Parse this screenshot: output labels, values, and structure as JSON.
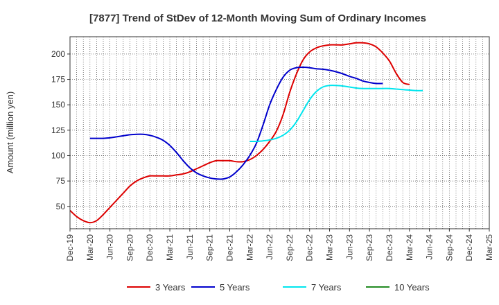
{
  "chart_data": {
    "type": "line",
    "title": "[7877]  Trend of StDev of 12-Month Moving Sum of Ordinary Incomes",
    "ylabel": "Amount (million yen)",
    "xlabel": "",
    "x_ticks": [
      "Dec-19",
      "Mar-20",
      "Jun-20",
      "Sep-20",
      "Dec-20",
      "Mar-21",
      "Jun-21",
      "Sep-21",
      "Dec-21",
      "Mar-22",
      "Jun-22",
      "Sep-22",
      "Dec-22",
      "Mar-23",
      "Jun-23",
      "Sep-23",
      "Dec-23",
      "Mar-24",
      "Jun-24",
      "Sep-24",
      "Dec-24",
      "Mar-25"
    ],
    "y_ticks": [
      50,
      75,
      100,
      125,
      150,
      175,
      200
    ],
    "ylim": [
      28,
      217
    ],
    "grid": true,
    "legend_position": "bottom",
    "series": [
      {
        "name": "3 Years",
        "color": "#dd0000",
        "start_index": 0,
        "values": [
          46,
          40,
          36,
          34,
          36,
          42,
          49,
          56,
          63,
          70,
          75,
          78,
          80,
          80,
          80,
          80,
          81,
          82,
          84,
          87,
          90,
          93,
          95,
          95,
          95,
          94,
          94,
          96,
          100,
          106,
          114,
          124,
          140,
          162,
          180,
          194,
          202,
          206,
          208,
          209,
          209,
          209,
          210,
          211,
          211,
          210,
          207,
          201,
          193,
          181,
          172,
          170
        ]
      },
      {
        "name": "5 Years",
        "color": "#0000cc",
        "start_index": 3,
        "values": [
          117,
          117,
          117,
          117.5,
          118.5,
          119.5,
          120.5,
          121,
          121,
          120,
          118,
          115,
          110,
          103,
          95,
          88,
          83,
          80,
          78,
          77,
          77,
          79,
          84,
          91,
          100,
          112,
          130,
          150,
          165,
          177,
          184,
          186.5,
          187,
          186.5,
          185.5,
          185,
          184,
          182.5,
          180.5,
          178,
          176,
          173.5,
          172,
          171,
          171
        ]
      },
      {
        "name": "7 Years",
        "color": "#00e5ee",
        "start_index": 27,
        "values": [
          114,
          114,
          114.5,
          115.5,
          117,
          120,
          125,
          133,
          144,
          155,
          163,
          167.5,
          169,
          169,
          168.5,
          167.5,
          166.5,
          166,
          166,
          166,
          166,
          166,
          165.5,
          165,
          164.5,
          164,
          164
        ]
      },
      {
        "name": "10 Years",
        "color": "#228b22",
        "start_index": 0,
        "values": []
      }
    ]
  }
}
